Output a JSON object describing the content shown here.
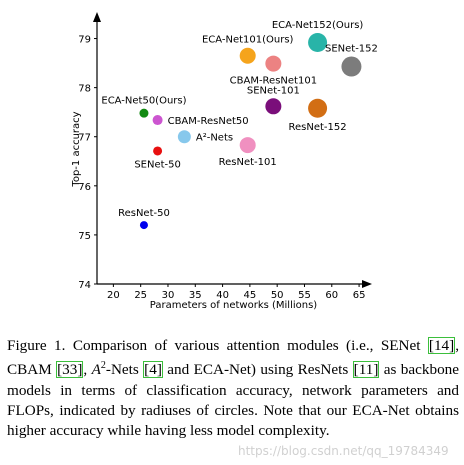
{
  "chart_data": {
    "type": "scatter",
    "xlabel": "Parameters of networks (Millions)",
    "ylabel": "Top-1 accuracy",
    "xlim": [
      17,
      67
    ],
    "ylim": [
      74,
      79.5
    ],
    "x_ticks": [
      20,
      25,
      30,
      35,
      40,
      45,
      50,
      55,
      60,
      65
    ],
    "y_ticks": [
      74,
      75,
      76,
      77,
      78,
      79
    ],
    "grid": false,
    "points": [
      {
        "label": "ResNet-50",
        "x": 25.6,
        "y": 75.2,
        "radius_px": 4,
        "color": "#0000ee",
        "label_pos": "above"
      },
      {
        "label": "SENet-50",
        "x": 28.1,
        "y": 76.71,
        "radius_px": 4.5,
        "color": "#e81010",
        "label_pos": "below"
      },
      {
        "label": "CBAM-ResNet50",
        "x": 28.1,
        "y": 77.34,
        "radius_px": 5,
        "color": "#cc55d0",
        "label_pos": "right"
      },
      {
        "label": "ECA-Net50(Ours)",
        "x": 25.6,
        "y": 77.48,
        "radius_px": 4.5,
        "color": "#128a12",
        "label_pos": "above"
      },
      {
        "label": "A²-Nets",
        "x": 33.0,
        "y": 77.0,
        "radius_px": 6.5,
        "color": "#87c8ec",
        "label_pos": "right"
      },
      {
        "label": "ResNet-101",
        "x": 44.6,
        "y": 76.83,
        "radius_px": 8,
        "color": "#f090c0",
        "label_pos": "below"
      },
      {
        "label": "SENet-101",
        "x": 49.3,
        "y": 77.62,
        "radius_px": 8,
        "color": "#7a0e7a",
        "label_pos": "above"
      },
      {
        "label": "ResNet-152",
        "x": 57.4,
        "y": 77.58,
        "radius_px": 9.5,
        "color": "#d26e14",
        "label_pos": "below"
      },
      {
        "label": "CBAM-ResNet101",
        "x": 49.3,
        "y": 78.49,
        "radius_px": 8,
        "color": "#ec8282",
        "label_pos": "below"
      },
      {
        "label": "ECA-Net101(Ours)",
        "x": 44.6,
        "y": 78.65,
        "radius_px": 8,
        "color": "#f5a41c",
        "label_pos": "above"
      },
      {
        "label": "ECA-Net152(Ours)",
        "x": 57.4,
        "y": 78.92,
        "radius_px": 9.5,
        "color": "#28b4a8",
        "label_pos": "above"
      },
      {
        "label": "SENet-152",
        "x": 63.6,
        "y": 78.43,
        "radius_px": 10,
        "color": "#7c7c7c",
        "label_pos": "above"
      }
    ]
  },
  "caption": {
    "p1": "Figure 1. Comparison of various attention modules (i.e., SENet ",
    "r1": "[14]",
    "p2": ", CBAM ",
    "r2": "[33]",
    "p3": ", ",
    "a2": "A",
    "a2sup": "2",
    "p4": "-Nets ",
    "r3": "[4]",
    "p5": " and ECA-Net) using ResNets ",
    "r4": "[11]",
    "p6": " as backbone models in terms of classification accuracy, network parameters and FLOPs, indicated by radiuses of circles. Note that our ECA-Net obtains higher accuracy while having less model complexity."
  },
  "watermark": "https://blog.csdn.net/qq_19784349"
}
